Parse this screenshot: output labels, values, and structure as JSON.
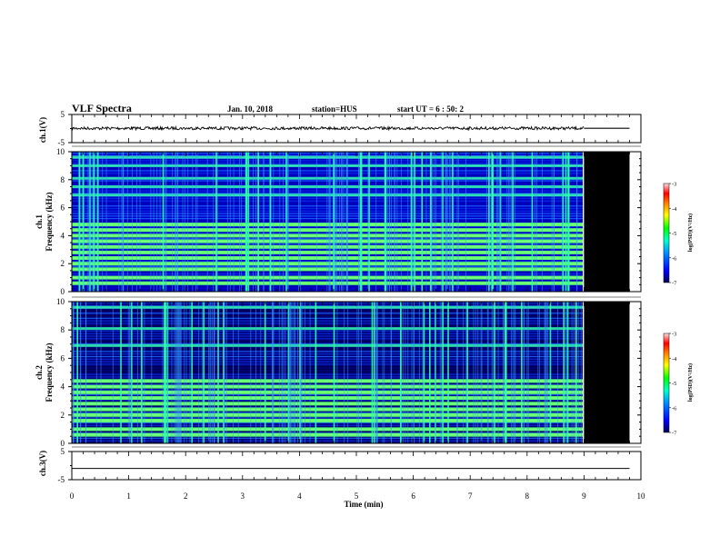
{
  "header": {
    "title": "VLF Spectra",
    "date": "Jan. 10, 2018",
    "station": "station=HUS",
    "start": "start UT =  6 : 50: 2"
  },
  "colors": {
    "spec_low": "#0000c8",
    "spec_mid": "#1a6bff",
    "spec_line": "#31ffb0",
    "spec_line_strong": "#5cff6a",
    "no_data": "#000000",
    "colorbar": [
      "#000060",
      "#0000ff",
      "#00a0ff",
      "#00ffc0",
      "#00ff00",
      "#ffff00",
      "#ff8000",
      "#ff0000",
      "#ffffff"
    ]
  },
  "chart_data": [
    {
      "type": "line",
      "panel": "ch1-waveform",
      "ylabel": "ch.1(V)",
      "ylim": [
        -5,
        5
      ],
      "yticks": [
        "5",
        "-5"
      ],
      "xlim": [
        0,
        10
      ],
      "data_end_min": 9.0,
      "series": [
        {
          "x": [
            0,
            9.8
          ],
          "y": [
            0.1,
            0.1
          ]
        }
      ]
    },
    {
      "type": "heatmap",
      "panel": "ch1-spectrogram",
      "ylabel": "Frequency (kHz)",
      "channel_label": "ch.1",
      "ylim": [
        0,
        10
      ],
      "yticks": [
        "0",
        "2",
        "4",
        "6",
        "8",
        "10"
      ],
      "xlim": [
        0,
        10
      ],
      "data_end_min": 9.0,
      "plot_end_min": 9.8,
      "strong_lines_khz": [
        0.6,
        1.0,
        1.6,
        2.0,
        2.4,
        2.8,
        3.2,
        3.6,
        4.0,
        4.4,
        4.8
      ],
      "weak_lines_khz": [
        6.9,
        7.5,
        8.1,
        9.0,
        9.6
      ],
      "colorbar": {
        "label": "log(PSD)(V²/Hz)",
        "range": [
          -7,
          -3
        ],
        "ticks": [
          "-3",
          "-4",
          "-5",
          "-6",
          "-7"
        ]
      }
    },
    {
      "type": "heatmap",
      "panel": "ch2-spectrogram",
      "ylabel": "Frequency (kHz)",
      "channel_label": "ch.2",
      "ylim": [
        0,
        10
      ],
      "yticks": [
        "0",
        "2",
        "4",
        "6",
        "8",
        "10"
      ],
      "xlim": [
        0,
        10
      ],
      "data_end_min": 9.0,
      "plot_end_min": 9.8,
      "strong_lines_khz": [
        0.6,
        1.0,
        1.6,
        2.0,
        2.4,
        2.8,
        3.2,
        3.6,
        4.0,
        4.4
      ],
      "weak_lines_khz": [
        6.9,
        8.1,
        9.6
      ],
      "colorbar": {
        "label": "log(PSD)(V²/Hz)",
        "range": [
          -7,
          -3
        ],
        "ticks": [
          "-3",
          "-4",
          "-5",
          "-6",
          "-7"
        ]
      }
    },
    {
      "type": "line",
      "panel": "ch3-waveform",
      "ylabel": "ch.3(V)",
      "ylim": [
        -5,
        5
      ],
      "yticks": [
        "5",
        "-5"
      ],
      "xlim": [
        0,
        10
      ],
      "series": [
        {
          "x": [
            0,
            9.8
          ],
          "y": [
            -1.0,
            -1.0
          ]
        }
      ]
    }
  ],
  "xaxis": {
    "label": "Time (min)",
    "ticks": [
      "0",
      "1",
      "2",
      "3",
      "4",
      "5",
      "6",
      "7",
      "8",
      "9",
      "10"
    ]
  }
}
